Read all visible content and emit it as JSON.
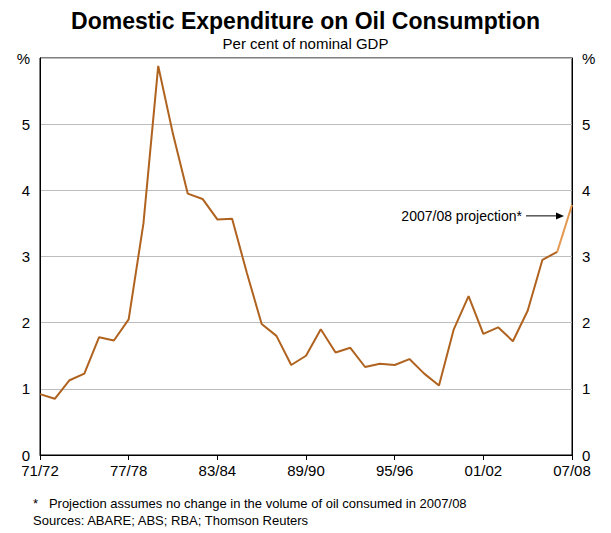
{
  "chart_data": {
    "type": "line",
    "title": "Domestic Expenditure on Oil Consumption",
    "subtitle": "Per cent of nominal GDP",
    "categories": [
      "71/72",
      null,
      null,
      null,
      null,
      null,
      "77/78",
      null,
      null,
      null,
      null,
      null,
      "83/84",
      null,
      null,
      null,
      null,
      null,
      "89/90",
      null,
      null,
      null,
      null,
      null,
      "95/96",
      null,
      null,
      null,
      null,
      null,
      "01/02",
      null,
      null,
      null,
      null,
      null,
      "07/08"
    ],
    "series": [
      {
        "color": "#b0621f",
        "values": [
          0.92,
          0.85,
          1.13,
          1.23,
          1.78,
          1.73,
          2.05,
          3.5,
          5.88,
          4.85,
          3.95,
          3.87,
          3.56,
          3.57,
          2.75,
          1.98,
          1.8,
          1.36,
          1.5,
          1.9,
          1.55,
          1.62,
          1.33,
          1.38,
          1.36,
          1.45,
          1.23,
          1.05,
          1.9,
          2.4,
          1.83,
          1.93,
          1.72,
          2.18,
          2.95,
          3.07,
          null
        ]
      },
      {
        "color": "#e49a52",
        "values": [
          null,
          null,
          null,
          null,
          null,
          null,
          null,
          null,
          null,
          null,
          null,
          null,
          null,
          null,
          null,
          null,
          null,
          null,
          null,
          null,
          null,
          null,
          null,
          null,
          null,
          null,
          null,
          null,
          null,
          null,
          null,
          null,
          null,
          null,
          null,
          3.07,
          3.78
        ]
      }
    ],
    "ylim": [
      0,
      6
    ],
    "yticks": [
      0,
      1,
      2,
      3,
      4,
      5,
      {
        "value": 6,
        "label": "%"
      }
    ],
    "grid": true,
    "annotations": [
      "2007/08 projection*"
    ],
    "footnotes": [
      "*   Projection assumes no change in the volume of oil consumed in 2007/08",
      "Sources: ABARE; ABS; RBA; Thomson Reuters"
    ]
  }
}
